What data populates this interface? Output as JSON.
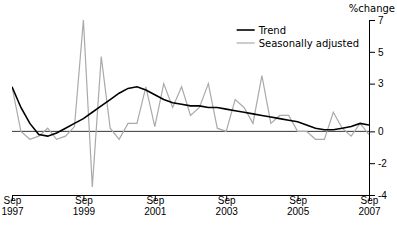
{
  "chart_data": {
    "type": "line",
    "title": "%change",
    "categories": [
      "Sep\n1997",
      null,
      null,
      null,
      null,
      null,
      null,
      null,
      "Sep\n1999",
      null,
      null,
      null,
      null,
      null,
      null,
      null,
      "Sep\n2001",
      null,
      null,
      null,
      null,
      null,
      null,
      null,
      "Sep\n2003",
      null,
      null,
      null,
      null,
      null,
      null,
      null,
      "Sep\n2005",
      null,
      null,
      null,
      null,
      null,
      null,
      null,
      "Sep\n2007"
    ],
    "series": [
      {
        "name": "Trend",
        "color": "#000000",
        "values": [
          2.8,
          1.5,
          0.5,
          -0.2,
          -0.3,
          -0.1,
          0.2,
          0.5,
          0.8,
          1.2,
          1.6,
          2.0,
          2.4,
          2.7,
          2.8,
          2.6,
          2.3,
          2.0,
          1.8,
          1.7,
          1.6,
          1.6,
          1.5,
          1.5,
          1.4,
          1.3,
          1.2,
          1.1,
          1.0,
          0.9,
          0.8,
          0.7,
          0.6,
          0.4,
          0.2,
          0.1,
          0.1,
          0.2,
          0.3,
          0.5,
          0.4
        ]
      },
      {
        "name": "Seasonally adjusted",
        "color": "#aaaaaa",
        "values": [
          2.8,
          0.0,
          -0.5,
          -0.3,
          0.2,
          -0.5,
          -0.3,
          0.3,
          7.0,
          -3.5,
          4.7,
          0.2,
          -0.5,
          0.5,
          0.5,
          2.8,
          0.3,
          3.0,
          1.5,
          2.8,
          1.0,
          1.5,
          3.0,
          0.2,
          0.0,
          2.0,
          1.5,
          0.5,
          3.5,
          0.5,
          1.0,
          1.0,
          0.0,
          0.0,
          -0.5,
          -0.5,
          1.2,
          0.2,
          -0.3,
          0.5,
          -0.2
        ]
      }
    ],
    "ylim": [
      -4,
      7
    ],
    "yticks": [
      7,
      5,
      3,
      0,
      -2,
      -4
    ],
    "legend": "upper right",
    "grid": false
  }
}
